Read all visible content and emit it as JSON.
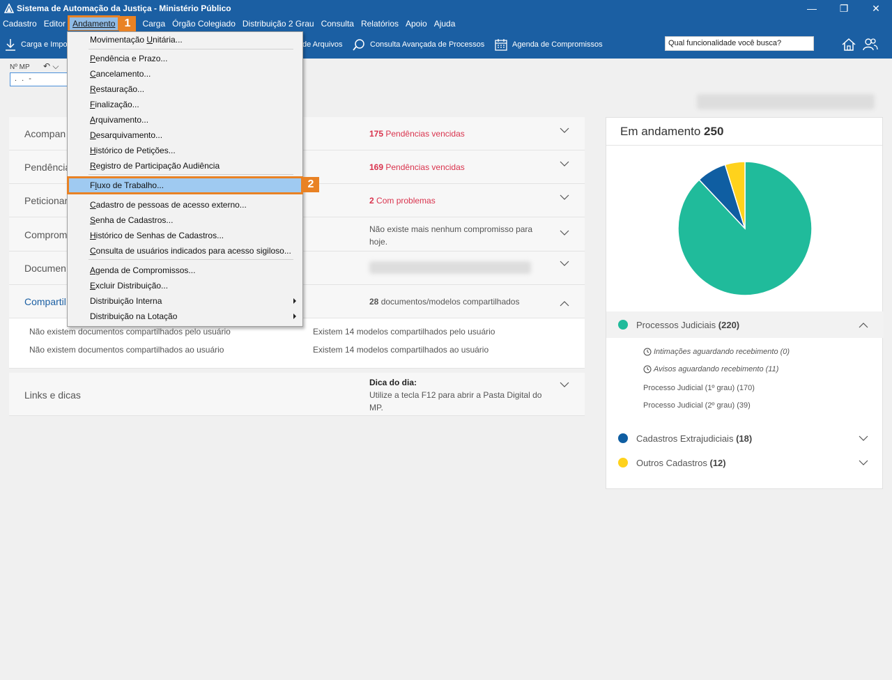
{
  "window": {
    "title": "Sistema de Automação da Justiça - Ministério Público",
    "controls": [
      "—",
      "❐",
      "✕"
    ]
  },
  "menubar": {
    "items": [
      "Cadastro",
      "Editor",
      "Andamento",
      "Carga",
      "Órgão Colegiado",
      "Distribuição 2 Grau",
      "Consulta",
      "Relatórios",
      "Apoio",
      "Ajuda"
    ],
    "active_index": 2
  },
  "toolbar": {
    "carga": "Carga e Impo",
    "arquivos": "de Arquivos",
    "consulta_avancada": "Consulta Avançada de Processos",
    "agenda": "Agenda de Compromissos",
    "search_placeholder": "Qual funcionalidade você busca?"
  },
  "np": {
    "label": "Nº MP",
    "value": ".   .     -"
  },
  "dropdown": {
    "items": [
      {
        "label": "Movimentação Unitária...",
        "u": "U"
      },
      {
        "label": "Pendência e Prazo...",
        "u": "P"
      },
      {
        "label": "Cancelamento...",
        "u": "C"
      },
      {
        "label": "Restauração...",
        "u": "R"
      },
      {
        "label": "Finalização...",
        "u": "F"
      },
      {
        "label": "Arquivamento...",
        "u": "A"
      },
      {
        "label": "Desarquivamento...",
        "u": "D"
      },
      {
        "label": "Histórico de Petições...",
        "u": "H"
      },
      {
        "label": "Registro de Participação Audiência",
        "u": "R"
      },
      {
        "label": "Fluxo de Trabalho...",
        "u": "l"
      },
      {
        "label": "Cadastro de pessoas de acesso externo...",
        "u": "C"
      },
      {
        "label": "Senha de Cadastros...",
        "u": "S"
      },
      {
        "label": "Histórico de Senhas de Cadastros...",
        "u": "H"
      },
      {
        "label": "Consulta de usuários indicados para acesso sigiloso...",
        "u": "C"
      },
      {
        "label": "Agenda de Compromissos...",
        "u": "A"
      },
      {
        "label": "Excluir Distribuição...",
        "u": "E"
      },
      {
        "label": "Distribuição Interna",
        "u": ""
      },
      {
        "label": "Distribuição na Lotação",
        "u": ""
      }
    ],
    "highlighted_index": 9
  },
  "badges": {
    "one": "1",
    "two": "2"
  },
  "accordion": [
    {
      "title": "Acompan",
      "count": "175",
      "info": "Pendências vencidas"
    },
    {
      "title": "Pendência",
      "count": "169",
      "info": "Pendências vencidas"
    },
    {
      "title": "Peticionar",
      "count": "2",
      "info": "Com problemas"
    },
    {
      "title": "Comprom",
      "info": "Não existe mais nenhum compromisso para hoje."
    },
    {
      "title": "Documen"
    },
    {
      "title": "Compartil",
      "count": "28",
      "info": "documentos/modelos compartilhados"
    }
  ],
  "shared_body": {
    "left1": "Não existem documentos compartilhados pelo usuário",
    "left2": "Não existem documentos compartilhados ao usuário",
    "right1": "Existem 14 modelos compartilhados pelo usuário",
    "right2": "Existem 14 modelos compartilhados ao usuário"
  },
  "links": {
    "title": "Links e dicas",
    "tip_title": "Dica do dia:",
    "tip_text1": "Utilize a tecla F12 para abrir a Pasta Digital do",
    "tip_text2": "MP."
  },
  "right_panel": {
    "heading": "Em andamento",
    "total": "250",
    "legend": [
      {
        "label": "Processos Judiciais",
        "count": "(220)",
        "color": "#20bb9b"
      },
      {
        "label": "Cadastros Extrajudiciais",
        "count": "(18)",
        "color": "#0f5ea2"
      },
      {
        "label": "Outros Cadastros",
        "count": "(12)",
        "color": "#ffd21c"
      }
    ],
    "sub_items": [
      "Intimações aguardando recebimento (0)",
      "Avisos aguardando recebimento (11)",
      "Processo Judicial (1º grau) (170)",
      "Processo Judicial (2º grau) (39)"
    ]
  },
  "chart_data": {
    "type": "pie",
    "categories": [
      "Processos Judiciais",
      "Cadastros Extrajudiciais",
      "Outros Cadastros"
    ],
    "values": [
      220,
      18,
      12
    ],
    "colors": [
      "#20bb9b",
      "#0f5ea2",
      "#ffd21c"
    ]
  }
}
